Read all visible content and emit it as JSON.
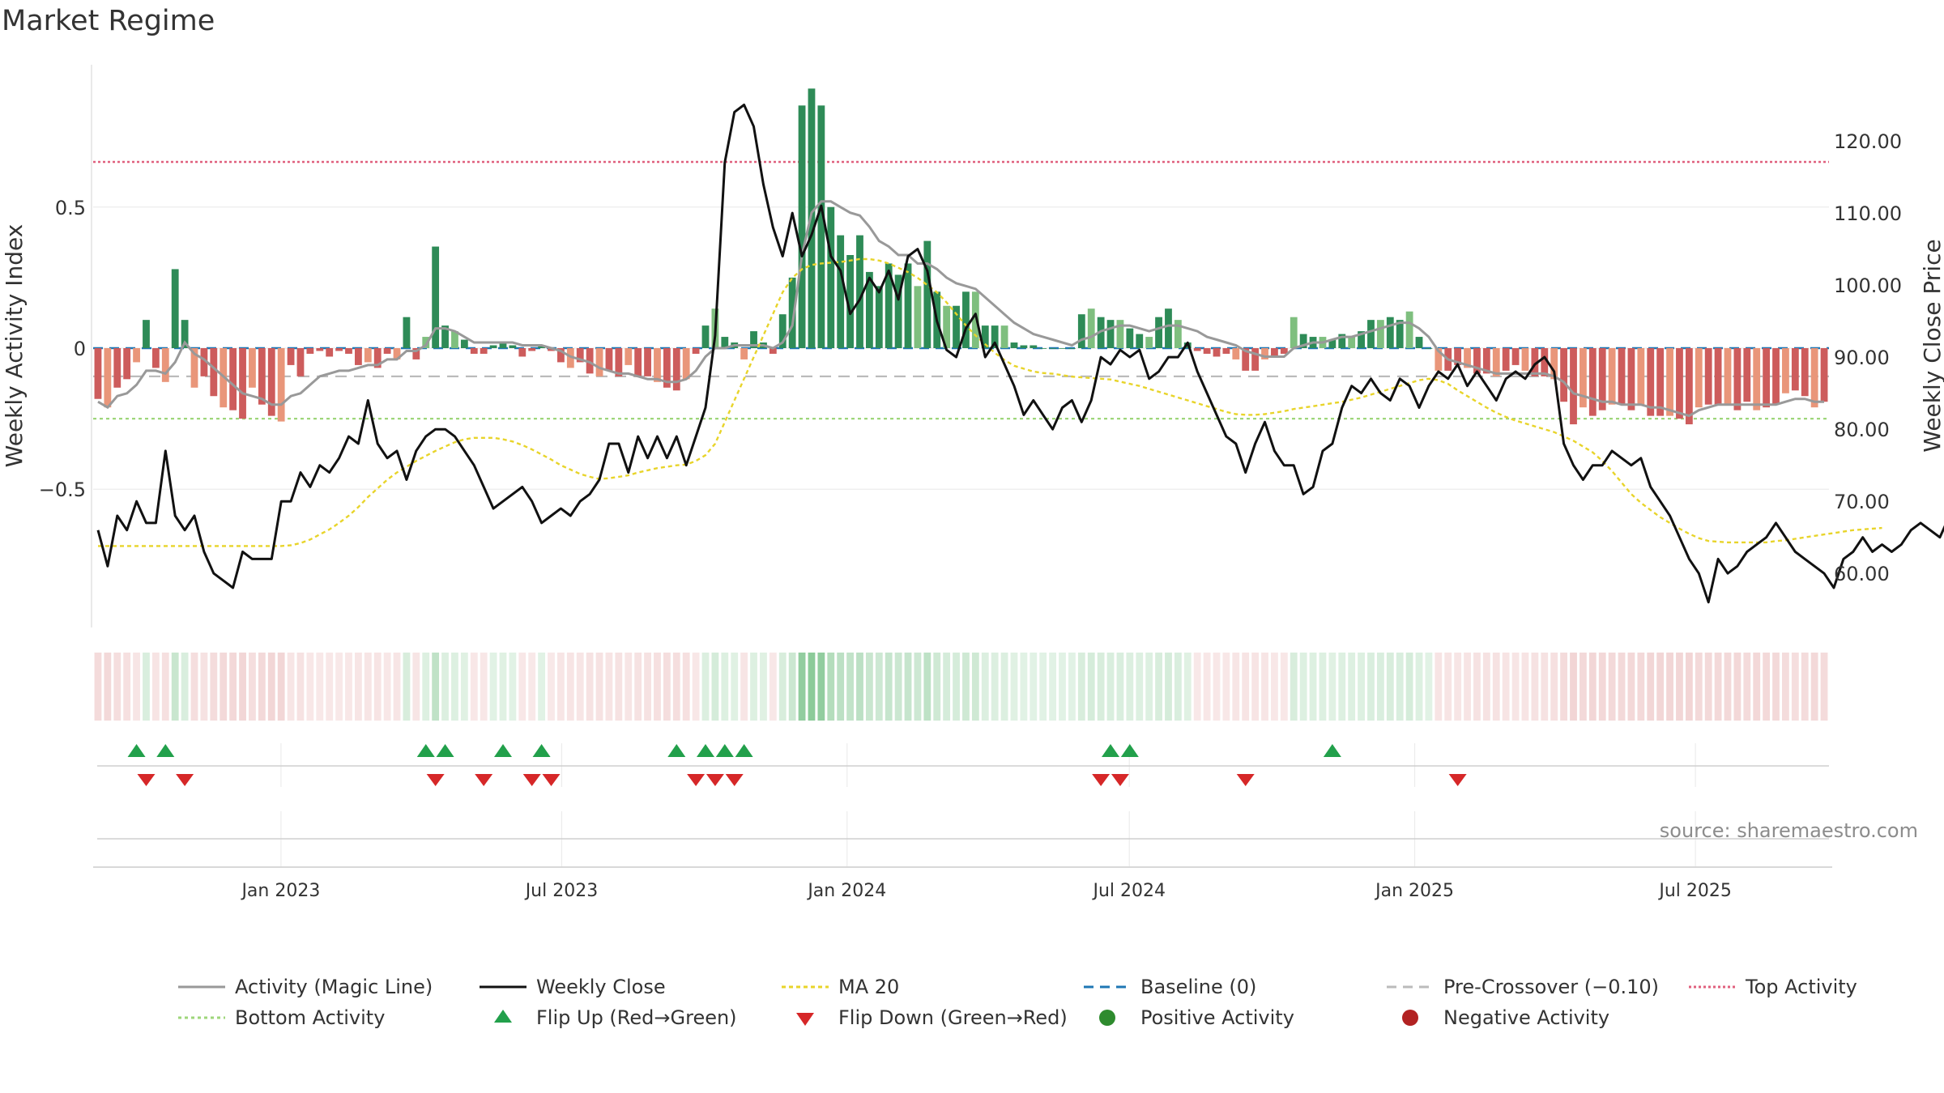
{
  "chart_data": {
    "type": "bar",
    "title": "Market Regime",
    "ylabel": "Weekly Activity Index",
    "y2label": "Weekly Close Price",
    "source": "source: sharemaestro.com",
    "ylim": [
      -0.99,
      0.99
    ],
    "y2lim": [
      52.5,
      130.0
    ],
    "y_ticks": [
      0.5,
      0,
      -0.5
    ],
    "y_tick_labels": [
      "0.5",
      "0",
      "−0.5"
    ],
    "y2_ticks": [
      120,
      110,
      100,
      90,
      80,
      70,
      60
    ],
    "y2_tick_labels": [
      "120.00",
      "110.00",
      "100.00",
      "90.00",
      "80.00",
      "70.00",
      "60.00"
    ],
    "x_start": "2022-09-05",
    "x_end": "2025-09-22",
    "x_ticks": [
      {
        "date": "2023-01-01",
        "label": "Jan 2023"
      },
      {
        "date": "2023-07-01",
        "label": "Jul 2023"
      },
      {
        "date": "2024-01-01",
        "label": "Jan 2024"
      },
      {
        "date": "2024-07-01",
        "label": "Jul 2024"
      },
      {
        "date": "2025-01-01",
        "label": "Jan 2025"
      },
      {
        "date": "2025-07-01",
        "label": "Jul 2025"
      }
    ],
    "reference_lines": {
      "baseline": 0,
      "pre_crossover": -0.1,
      "top_activity": 0.66,
      "bottom_activity": -0.25
    },
    "colors": {
      "strong_green": "#2e8b57",
      "light_green": "#7fbf7f",
      "strong_red": "#cd5c5c",
      "light_red": "#e9967a",
      "magic_line": "#999999",
      "close": "#111111",
      "ma20": "#e8d42a",
      "baseline": "#1f77b4",
      "pre_crossover": "#bbbbbb",
      "top": "#e0607e",
      "bottom": "#9ed67a",
      "flip_up": "#22a04b",
      "flip_down": "#d62728",
      "positive": "#2e8b2e",
      "negative": "#b22222"
    },
    "activity_values": [
      -0.18,
      -0.21,
      -0.14,
      -0.11,
      -0.05,
      0.1,
      -0.07,
      -0.12,
      0.28,
      0.1,
      -0.14,
      -0.1,
      -0.17,
      -0.21,
      -0.22,
      -0.25,
      -0.14,
      -0.2,
      -0.24,
      -0.26,
      -0.06,
      -0.1,
      -0.02,
      -0.01,
      -0.03,
      -0.01,
      -0.02,
      -0.06,
      -0.05,
      -0.07,
      -0.02,
      -0.04,
      0.11,
      -0.04,
      0.04,
      0.36,
      0.08,
      0.06,
      0.03,
      -0.02,
      -0.02,
      0.01,
      0.02,
      0.01,
      -0.03,
      -0.01,
      0.01,
      -0.01,
      -0.05,
      -0.07,
      -0.05,
      -0.09,
      -0.1,
      -0.08,
      -0.1,
      -0.06,
      -0.1,
      -0.1,
      -0.12,
      -0.14,
      -0.15,
      -0.11,
      -0.02,
      0.08,
      0.14,
      0.04,
      0.02,
      -0.04,
      0.06,
      0.02,
      -0.02,
      0.12,
      0.25,
      0.86,
      0.92,
      0.86,
      0.5,
      0.4,
      0.33,
      0.4,
      0.27,
      0.22,
      0.3,
      0.26,
      0.3,
      0.22,
      0.38,
      0.2,
      0.15,
      0.15,
      0.2,
      0.2,
      0.08,
      0.08,
      0.08,
      0.02,
      0.01,
      0.01,
      0.0,
      0.0,
      0.0,
      0.0,
      0.12,
      0.14,
      0.11,
      0.1,
      0.1,
      0.07,
      0.05,
      0.04,
      0.11,
      0.14,
      0.1,
      0.02,
      -0.01,
      -0.02,
      -0.03,
      -0.02,
      -0.04,
      -0.08,
      -0.08,
      -0.04,
      -0.03,
      -0.02,
      0.11,
      0.05,
      0.04,
      0.04,
      0.03,
      0.05,
      0.04,
      0.06,
      0.1,
      0.1,
      0.11,
      0.1,
      0.13,
      0.04,
      0.0,
      -0.08,
      -0.08,
      -0.06,
      -0.07,
      -0.09,
      -0.09,
      -0.1,
      -0.08,
      -0.06,
      -0.08,
      -0.1,
      -0.1,
      -0.11,
      -0.19,
      -0.27,
      -0.21,
      -0.24,
      -0.22,
      -0.2,
      -0.2,
      -0.22,
      -0.2,
      -0.24,
      -0.24,
      -0.24,
      -0.25,
      -0.27,
      -0.21,
      -0.2,
      -0.2,
      -0.2,
      -0.22,
      -0.19,
      -0.22,
      -0.21,
      -0.2,
      -0.16,
      -0.15,
      -0.17,
      -0.21,
      -0.19
    ],
    "magic_line": [
      -0.19,
      -0.21,
      -0.17,
      -0.16,
      -0.13,
      -0.08,
      -0.08,
      -0.09,
      -0.05,
      0.02,
      -0.02,
      -0.04,
      -0.07,
      -0.1,
      -0.13,
      -0.16,
      -0.17,
      -0.18,
      -0.2,
      -0.2,
      -0.17,
      -0.16,
      -0.13,
      -0.1,
      -0.09,
      -0.08,
      -0.08,
      -0.07,
      -0.06,
      -0.06,
      -0.04,
      -0.04,
      -0.01,
      -0.01,
      0.01,
      0.07,
      0.07,
      0.06,
      0.04,
      0.02,
      0.02,
      0.02,
      0.02,
      0.02,
      0.01,
      0.01,
      0.01,
      0.0,
      -0.01,
      -0.03,
      -0.04,
      -0.05,
      -0.07,
      -0.08,
      -0.09,
      -0.09,
      -0.1,
      -0.11,
      -0.11,
      -0.12,
      -0.12,
      -0.11,
      -0.08,
      -0.03,
      0.0,
      0.0,
      0.01,
      0.01,
      0.01,
      0.01,
      0.0,
      0.02,
      0.08,
      0.33,
      0.48,
      0.52,
      0.52,
      0.5,
      0.48,
      0.47,
      0.43,
      0.38,
      0.36,
      0.33,
      0.33,
      0.3,
      0.3,
      0.28,
      0.25,
      0.23,
      0.22,
      0.21,
      0.18,
      0.15,
      0.12,
      0.09,
      0.07,
      0.05,
      0.04,
      0.03,
      0.02,
      0.01,
      0.03,
      0.04,
      0.06,
      0.07,
      0.08,
      0.08,
      0.07,
      0.06,
      0.07,
      0.08,
      0.08,
      0.07,
      0.06,
      0.04,
      0.03,
      0.02,
      0.01,
      -0.01,
      -0.02,
      -0.03,
      -0.03,
      -0.03,
      0.0,
      0.01,
      0.02,
      0.02,
      0.03,
      0.04,
      0.04,
      0.05,
      0.06,
      0.07,
      0.08,
      0.09,
      0.09,
      0.07,
      0.04,
      -0.01,
      -0.04,
      -0.05,
      -0.06,
      -0.07,
      -0.08,
      -0.09,
      -0.09,
      -0.09,
      -0.09,
      -0.09,
      -0.09,
      -0.1,
      -0.12,
      -0.16,
      -0.17,
      -0.18,
      -0.19,
      -0.19,
      -0.2,
      -0.2,
      -0.2,
      -0.21,
      -0.21,
      -0.22,
      -0.23,
      -0.24,
      -0.22,
      -0.21,
      -0.2,
      -0.2,
      -0.2,
      -0.2,
      -0.2,
      -0.2,
      -0.2,
      -0.19,
      -0.18,
      -0.18,
      -0.19,
      -0.19
    ],
    "weekly_close": [
      66,
      61,
      68,
      66,
      70,
      67,
      67,
      77,
      68,
      66,
      68,
      63,
      60,
      59,
      58,
      63,
      62,
      62,
      62,
      70,
      70,
      74,
      72,
      75,
      74,
      76,
      79,
      78,
      84,
      78,
      76,
      77,
      73,
      77,
      79,
      80,
      80,
      79,
      77,
      75,
      72,
      69,
      70,
      71,
      72,
      70,
      67,
      68,
      69,
      68,
      70,
      71,
      73,
      78,
      78,
      74,
      79,
      76,
      79,
      76,
      79,
      75,
      79,
      83,
      93,
      117,
      124,
      125,
      122,
      114,
      108,
      104,
      110,
      104,
      107,
      111,
      104,
      102,
      96,
      98,
      101,
      99,
      102,
      98,
      104,
      105,
      102,
      95,
      91,
      90,
      94,
      96,
      90,
      92,
      89,
      86,
      82,
      84,
      82,
      80,
      83,
      84,
      81,
      84,
      90,
      89,
      91,
      90,
      91,
      87,
      88,
      90,
      90,
      92,
      88,
      85,
      82,
      79,
      78,
      74,
      78,
      81,
      77,
      75,
      75,
      71,
      72,
      77,
      78,
      83,
      86,
      85,
      87,
      85,
      84,
      87,
      86,
      83,
      86,
      88,
      87,
      89,
      86,
      88,
      86,
      84,
      87,
      88,
      87,
      89,
      90,
      88,
      78,
      75,
      73,
      75,
      75,
      77,
      76,
      75,
      76,
      72,
      70,
      68,
      65,
      62,
      60,
      56,
      62,
      60,
      61,
      63,
      64,
      65,
      67,
      65,
      63,
      62,
      61,
      60,
      58,
      62,
      63,
      65,
      63,
      64,
      63,
      64,
      66,
      67,
      66,
      65,
      68,
      68,
      67,
      64,
      64,
      65
    ],
    "ma20": [
      63.8,
      63.8,
      63.8,
      63.8,
      63.8,
      63.8,
      63.8,
      63.8,
      63.8,
      63.8,
      63.8,
      63.8,
      63.8,
      63.8,
      63.8,
      63.8,
      63.8,
      63.8,
      63.8,
      63.8,
      63.9,
      64.2,
      64.7,
      65.4,
      66.1,
      67.0,
      68.0,
      69.2,
      70.6,
      71.8,
      73.0,
      74.0,
      74.8,
      75.6,
      76.3,
      77.0,
      77.6,
      78.2,
      78.6,
      78.8,
      78.8,
      78.8,
      78.6,
      78.3,
      77.8,
      77.2,
      76.5,
      75.8,
      75.0,
      74.4,
      73.8,
      73.4,
      73.1,
      73.2,
      73.4,
      73.6,
      74.0,
      74.3,
      74.6,
      74.8,
      75.0,
      75.1,
      75.6,
      76.4,
      78.0,
      81.0,
      84.0,
      87.0,
      90.0,
      93.0,
      96.0,
      99.0,
      101.0,
      102.2,
      102.8,
      103.0,
      103.1,
      103.2,
      103.4,
      103.6,
      103.6,
      103.4,
      103.0,
      102.4,
      101.8,
      101.0,
      100.0,
      99.0,
      97.6,
      96.0,
      94.4,
      93.0,
      91.8,
      90.6,
      89.6,
      88.8,
      88.4,
      88.0,
      87.8,
      87.7,
      87.5,
      87.3,
      87.2,
      87.1,
      87.0,
      86.9,
      86.6,
      86.3,
      86.0,
      85.6,
      85.2,
      84.8,
      84.4,
      84.0,
      83.6,
      83.2,
      82.8,
      82.4,
      82.1,
      82.0,
      82.0,
      82.1,
      82.3,
      82.5,
      82.8,
      83.0,
      83.2,
      83.4,
      83.6,
      83.8,
      84.1,
      84.4,
      84.8,
      85.2,
      85.6,
      86.0,
      86.4,
      86.8,
      87.0,
      86.8,
      86.3,
      85.4,
      84.6,
      83.8,
      83.0,
      82.3,
      81.7,
      81.2,
      80.8,
      80.4,
      80.0,
      79.6,
      79.0,
      78.4,
      77.6,
      76.8,
      75.6,
      74.2,
      72.6,
      71.0,
      69.8,
      68.8,
      67.8,
      67.0,
      66.2,
      65.5,
      64.9,
      64.5,
      64.4,
      64.3,
      64.3,
      64.3,
      64.3,
      64.3,
      64.5,
      64.6,
      64.8,
      65.0,
      65.2,
      65.4,
      65.6,
      65.8,
      66.0,
      66.1,
      66.2,
      66.3
    ],
    "flip_up_weeks": [
      4,
      7,
      34,
      36,
      42,
      46,
      60,
      63,
      65,
      67,
      105,
      107,
      128
    ],
    "flip_down_weeks": [
      5,
      9,
      35,
      40,
      45,
      47,
      62,
      64,
      66,
      104,
      106,
      119,
      141
    ],
    "legend": [
      {
        "label": "Activity (Magic Line)",
        "kind": "line",
        "color": "#999999",
        "dash": ""
      },
      {
        "label": "Weekly Close",
        "kind": "line",
        "color": "#111111",
        "dash": ""
      },
      {
        "label": "MA 20",
        "kind": "line",
        "color": "#e8d42a",
        "dash": "5,4"
      },
      {
        "label": "Baseline (0)",
        "kind": "line",
        "color": "#1f77b4",
        "dash": "12,8"
      },
      {
        "label": "Pre-Crossover (−0.10)",
        "kind": "line",
        "color": "#bbbbbb",
        "dash": "12,8"
      },
      {
        "label": "Top Activity",
        "kind": "line",
        "color": "#e0607e",
        "dash": "3,3"
      },
      {
        "label": "Bottom Activity",
        "kind": "line",
        "color": "#9ed67a",
        "dash": "4,4"
      },
      {
        "label": "Flip Up (Red→Green)",
        "kind": "up",
        "color": "#22a04b",
        "dash": ""
      },
      {
        "label": "Flip Down (Green→Red)",
        "kind": "down",
        "color": "#d62728",
        "dash": ""
      },
      {
        "label": "Positive Activity",
        "kind": "dot",
        "color": "#2e8b2e",
        "dash": ""
      },
      {
        "label": "Negative Activity",
        "kind": "dot",
        "color": "#b22222",
        "dash": ""
      }
    ]
  }
}
